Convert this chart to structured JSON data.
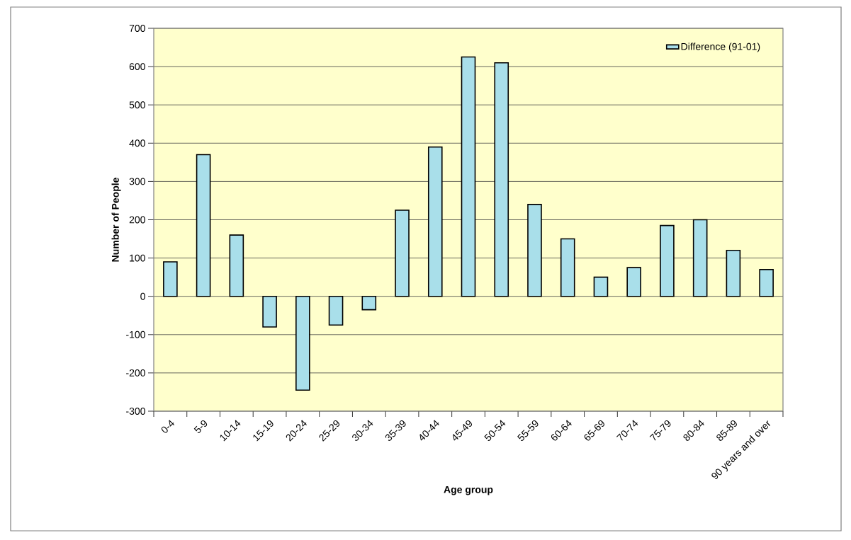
{
  "chart_data": {
    "type": "bar",
    "xlabel": "Age group",
    "ylabel": "Number of People",
    "categories": [
      "0-4",
      "5-9",
      "10-14",
      "15-19",
      "20-24",
      "25-29",
      "30-34",
      "35-39",
      "40-44",
      "45-49",
      "50-54",
      "55-59",
      "60-64",
      "65-69",
      "70-74",
      "75-79",
      "80-84",
      "85-89",
      "90 years and over"
    ],
    "series": [
      {
        "name": "Difference (91-01)",
        "color": "#a9dfea",
        "values": [
          90,
          370,
          160,
          -80,
          -245,
          -75,
          -35,
          225,
          390,
          625,
          610,
          240,
          150,
          50,
          75,
          185,
          200,
          120,
          70
        ]
      }
    ],
    "ylim": [
      -300,
      700
    ],
    "yticks": [
      -300,
      -200,
      -100,
      0,
      100,
      200,
      300,
      400,
      500,
      600,
      700
    ],
    "grid": "y",
    "legend": "top right"
  }
}
